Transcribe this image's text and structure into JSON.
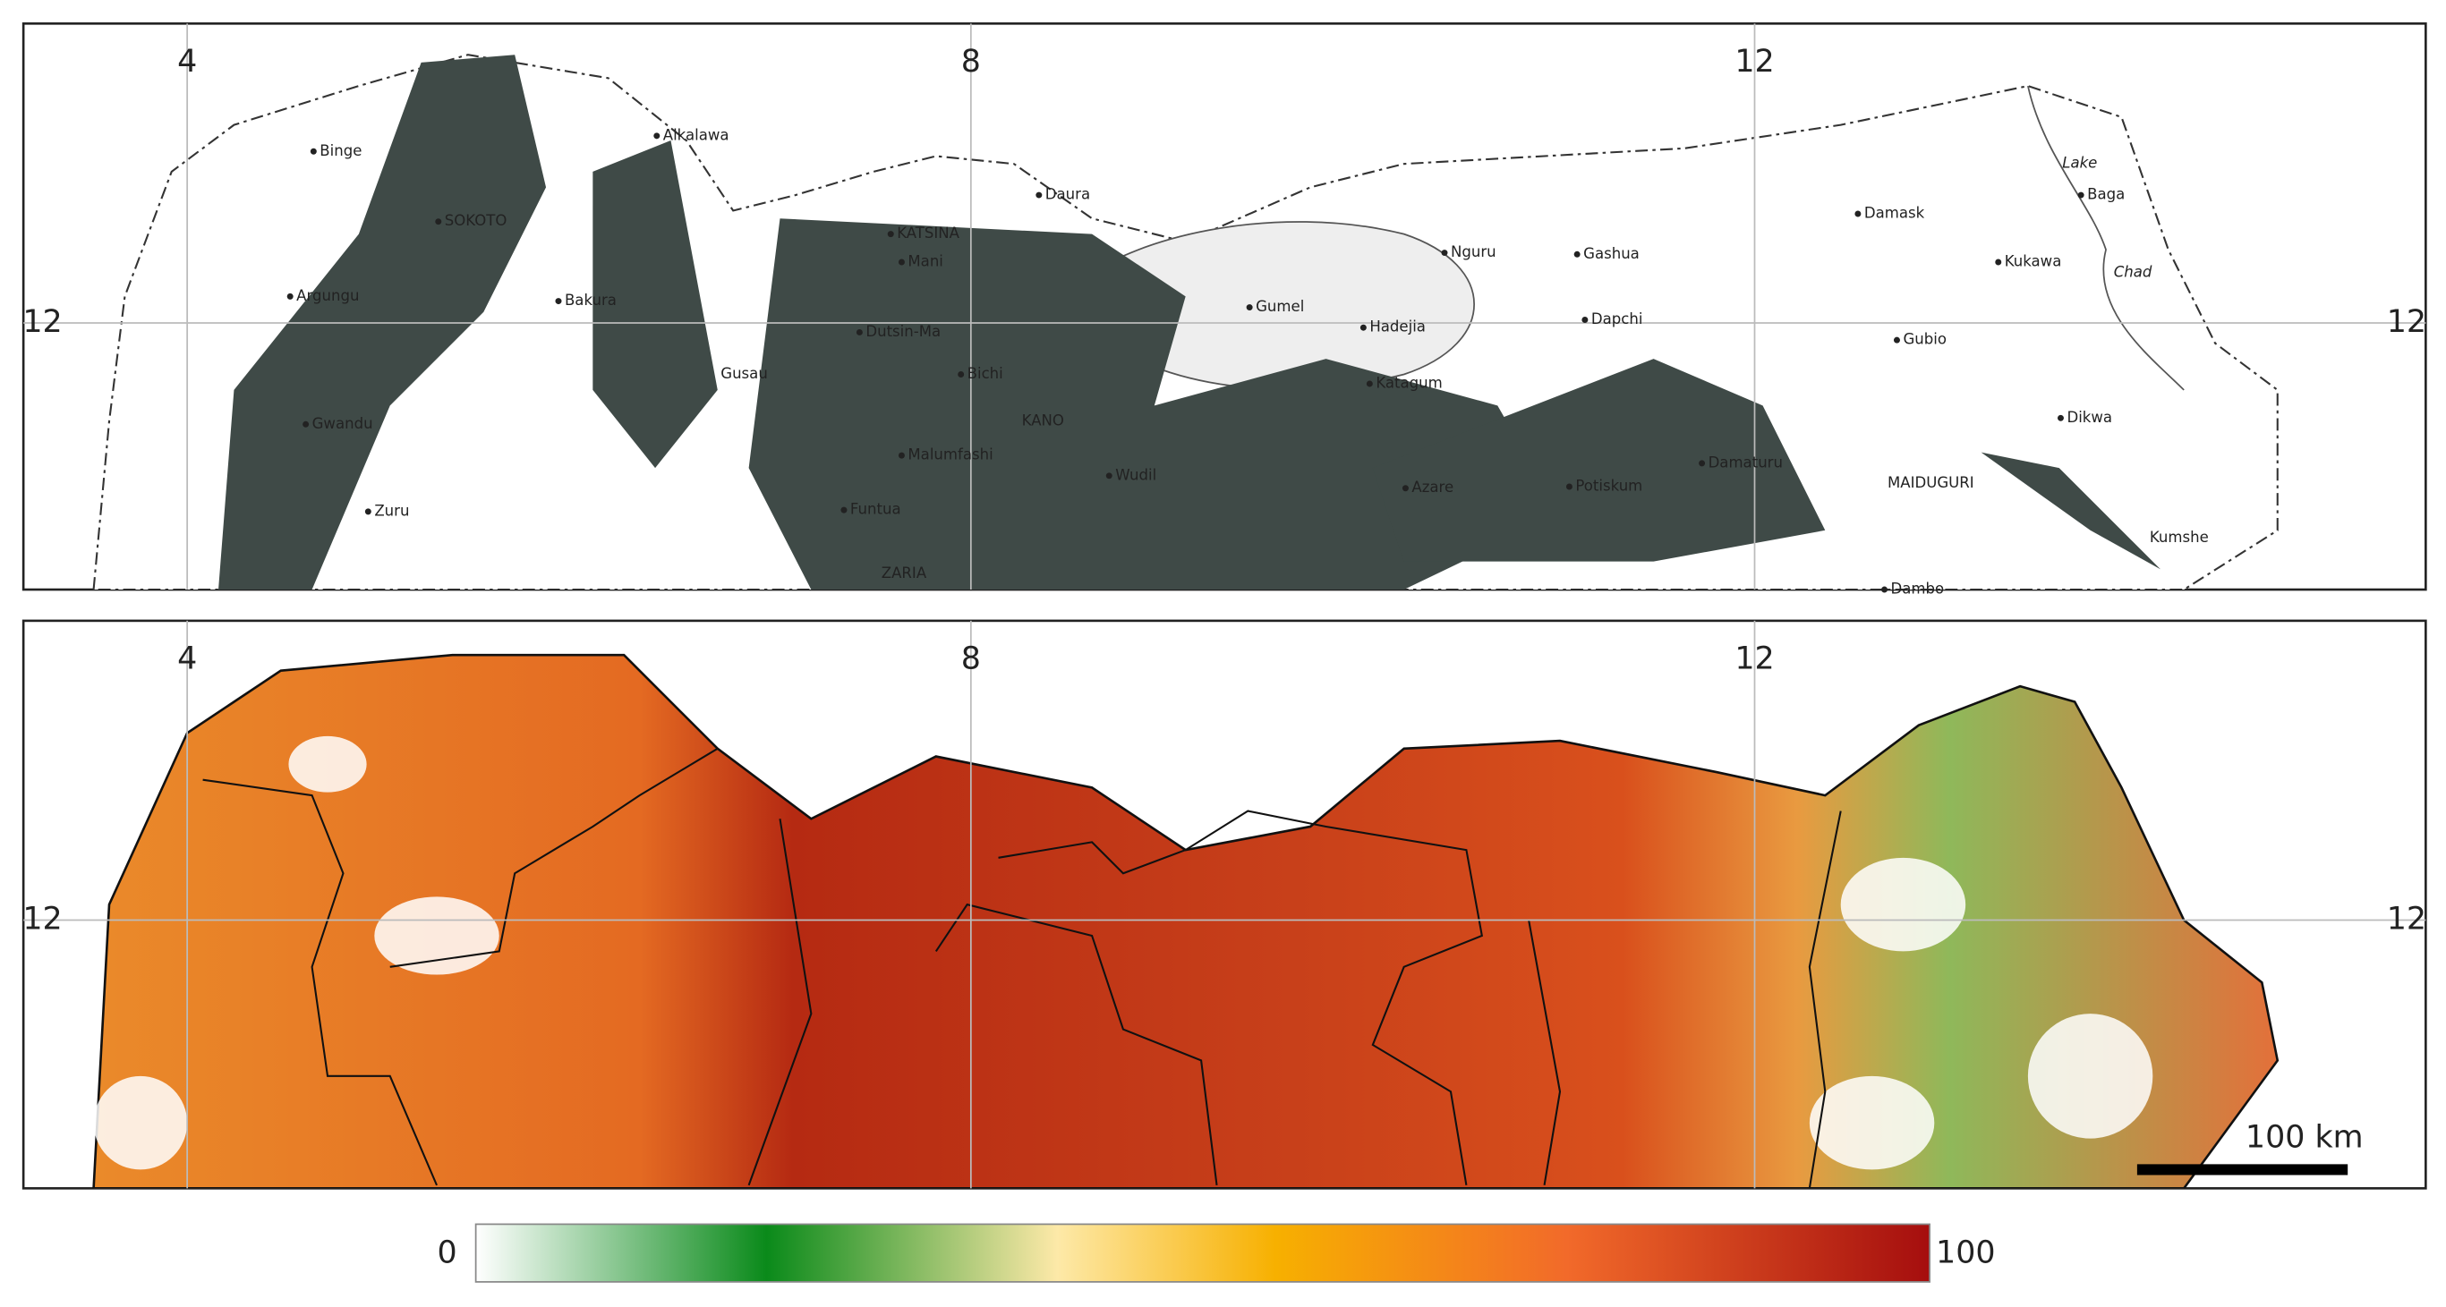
{
  "top_map": {
    "xticks": [
      4,
      8,
      12
    ],
    "yticks": [
      12
    ],
    "places": [
      "Binge",
      "SOKOTO",
      "Alkalawa",
      "Argungu",
      "Bakura",
      "Gwandu",
      "Zuru",
      "Gusau",
      "KATSINA",
      "Mani",
      "Daura",
      "Dutsin-Ma",
      "Bichi",
      "KANO",
      "Malumfashi",
      "Funtua",
      "ZARIA",
      "Wudil",
      "Gumel",
      "Hadejia",
      "Nguru",
      "Gashua",
      "Katagum",
      "Dapchi",
      "Azare",
      "Potiskum",
      "Damaturu",
      "MAIDUGURI",
      "Damask",
      "Lake",
      "Baga",
      "Chad",
      "Kukawa",
      "Gubio",
      "Dikwa",
      "Kumshe",
      "Dambo"
    ]
  },
  "bottom_map": {
    "xticks": [
      4,
      8,
      12
    ],
    "yticks": [
      12
    ],
    "scale_bar": "100 km"
  },
  "colorbar": {
    "ticks": [
      0,
      100
    ]
  }
}
